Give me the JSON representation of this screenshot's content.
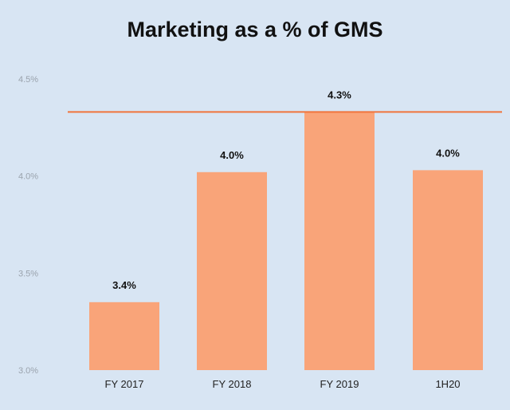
{
  "chart_data": {
    "type": "bar",
    "title": "Marketing as a % of GMS",
    "categories": [
      "FY 2017",
      "FY 2018",
      "FY 2019",
      "1H20"
    ],
    "values": [
      3.35,
      4.02,
      4.33,
      4.03
    ],
    "data_labels": [
      "3.4%",
      "4.0%",
      "4.3%",
      "4.0%"
    ],
    "yticks": [
      3.0,
      3.5,
      4.0,
      4.5
    ],
    "ytick_labels": [
      "3.0%",
      "3.5%",
      "4.0%",
      "4.5%"
    ],
    "ylim": [
      3.0,
      4.5
    ],
    "reference_line": 4.33,
    "xlabel": "",
    "ylabel": "",
    "grid": false,
    "colors": {
      "bar": "#f9a479",
      "reference_line": "#f0743c",
      "background": "#d8e5f3"
    }
  }
}
